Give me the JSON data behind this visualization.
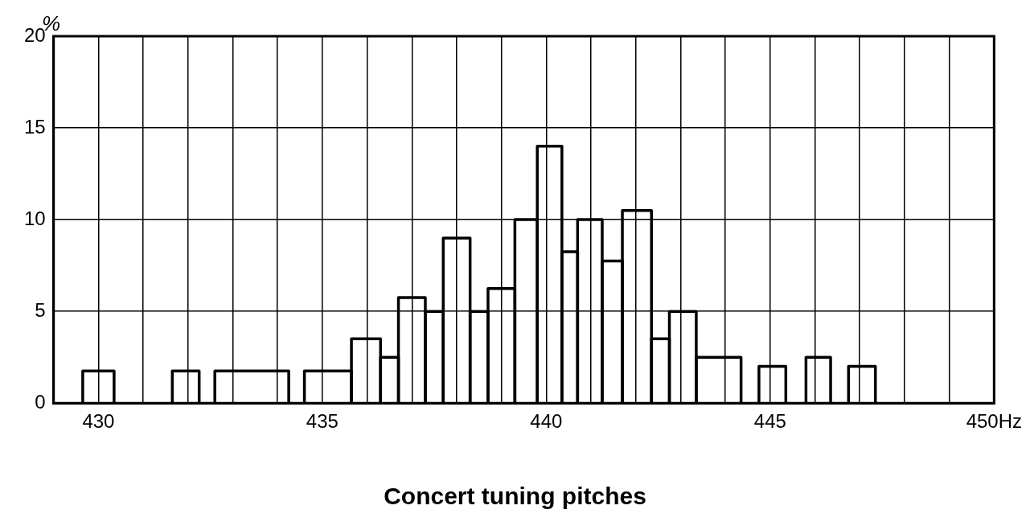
{
  "chart_data": {
    "type": "histogram",
    "title": "Concert tuning pitches",
    "ylabel": "%",
    "bins": [
      429.65,
      430.35,
      431.65,
      432.25,
      432.6,
      434.25,
      434.6,
      435.65,
      436.3,
      436.7,
      437.3,
      437.7,
      438.3,
      438.7,
      439.3,
      439.8,
      440.35,
      440.7,
      441.25,
      441.7,
      442.35,
      442.75,
      443.35,
      444.35,
      444.75,
      445.35,
      445.8,
      446.35,
      446.75,
      447.35
    ],
    "values": [
      1.75,
      0,
      1.75,
      0,
      1.75,
      0,
      1.75,
      3.5,
      2.5,
      5.75,
      5,
      9,
      5,
      6.25,
      10,
      14,
      8.25,
      10,
      7.75,
      10.5,
      3.5,
      5,
      2.5,
      0,
      2,
      0,
      2.5,
      0,
      2
    ],
    "color": "#000000",
    "xlim": [
      429,
      450
    ],
    "xticks": [
      {
        "value": 429,
        "label": null
      },
      430,
      {
        "value": 431,
        "label": null
      },
      {
        "value": 432,
        "label": null
      },
      {
        "value": 433,
        "label": null
      },
      {
        "value": 434,
        "label": null
      },
      435,
      {
        "value": 436,
        "label": null
      },
      {
        "value": 437,
        "label": null
      },
      {
        "value": 438,
        "label": null
      },
      {
        "value": 439,
        "label": null
      },
      440,
      {
        "value": 441,
        "label": null
      },
      {
        "value": 442,
        "label": null
      },
      {
        "value": 443,
        "label": null
      },
      {
        "value": 444,
        "label": null
      },
      445,
      {
        "value": 446,
        "label": null
      },
      {
        "value": 447,
        "label": null
      },
      {
        "value": 448,
        "label": null
      },
      {
        "value": 449,
        "label": null
      },
      {
        "value": 450,
        "label": "450Hz"
      }
    ],
    "ylim": [
      0,
      20
    ],
    "yticks": [
      0,
      5,
      10,
      15,
      20
    ],
    "grid": true,
    "legend": false
  }
}
